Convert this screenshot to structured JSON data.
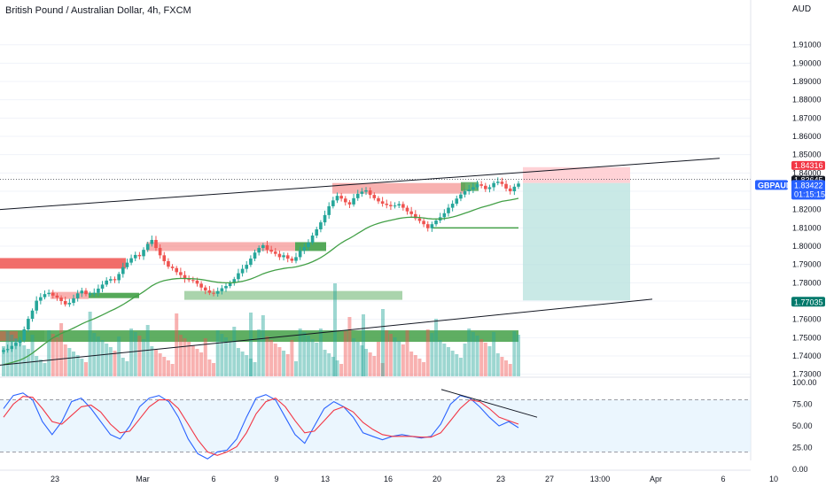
{
  "header": {
    "title": "British Pound / Australian Dollar, 4h, FXCM",
    "currency": "AUD"
  },
  "colors": {
    "up": "#26a69a",
    "down": "#ef5350",
    "ma": "#43a047",
    "trendline": "#131722",
    "stoch_k": "#2962ff",
    "stoch_d": "#f23645",
    "stoch_band": "#e3f2fd",
    "target_zone": "#b2dfdb",
    "stop_zone": "#ffcdd2",
    "ask_tag": "#f23645",
    "bid_tag": "#131722",
    "symbol_tag": "#2962ff",
    "target_tag": "#00796b"
  },
  "price_tags": {
    "ask": "1.84316",
    "bid": "1.83645",
    "symbol": "GBPAUD",
    "last": "1.83422",
    "countdown": "01:15:15",
    "target": "1.77035"
  },
  "chart_data": [
    {
      "type": "candlestick",
      "title": "British Pound / Australian Dollar, 4h, FXCM",
      "y_unit": "AUD",
      "ylim": [
        1.725,
        1.92
      ],
      "y_ticks": [
        "1.91000",
        "1.90000",
        "1.89000",
        "1.88000",
        "1.87000",
        "1.86000",
        "1.85000",
        "1.84000",
        "1.83000",
        "1.82000",
        "1.81000",
        "1.80000",
        "1.79000",
        "1.78000",
        "1.77000",
        "1.76000",
        "1.75000",
        "1.74000",
        "1.73000"
      ],
      "x_ticks": [
        "23",
        "Mar",
        "6",
        "9",
        "13",
        "16",
        "20",
        "23",
        "27",
        "13:00",
        "Apr",
        "6",
        "10"
      ],
      "grid": true,
      "close": [
        1.7432,
        1.7438,
        1.7455,
        1.7472,
        1.7486,
        1.7545,
        1.7603,
        1.7648,
        1.7702,
        1.7721,
        1.7738,
        1.7745,
        1.773,
        1.7719,
        1.77,
        1.7682,
        1.769,
        1.7715,
        1.7742,
        1.7757,
        1.7738,
        1.774,
        1.7745,
        1.7768,
        1.779,
        1.7812,
        1.782,
        1.7814,
        1.7848,
        1.7885,
        1.791,
        1.7934,
        1.7952,
        1.7945,
        1.798,
        1.8012,
        1.8034,
        1.799,
        1.795,
        1.7918,
        1.7888,
        1.788,
        1.7858,
        1.7842,
        1.782,
        1.7815,
        1.7812,
        1.7795,
        1.7774,
        1.7758,
        1.7745,
        1.774,
        1.7754,
        1.777,
        1.7782,
        1.7798,
        1.782,
        1.7852,
        1.7876,
        1.7898,
        1.7932,
        1.7965,
        1.799,
        1.8005,
        1.798,
        1.797,
        1.7958,
        1.794,
        1.795,
        1.7932,
        1.792,
        1.794,
        1.7975,
        1.7995,
        1.802,
        1.8058,
        1.8092,
        1.813,
        1.817,
        1.8218,
        1.825,
        1.8275,
        1.826,
        1.824,
        1.8228,
        1.8262,
        1.8286,
        1.8298,
        1.8305,
        1.828,
        1.8262,
        1.8245,
        1.8232,
        1.8225,
        1.8218,
        1.8222,
        1.823,
        1.821,
        1.819,
        1.8175,
        1.8152,
        1.8138,
        1.812,
        1.8098,
        1.812,
        1.814,
        1.8158,
        1.818,
        1.821,
        1.8232,
        1.826,
        1.8282,
        1.83,
        1.831,
        1.8322,
        1.8338,
        1.833,
        1.8312,
        1.8322,
        1.8345,
        1.8352,
        1.834,
        1.8315,
        1.83,
        1.8325,
        1.8342
      ],
      "ma": {
        "name": "",
        "start_value": 1.7348,
        "note": "smoothed moving average"
      },
      "trendlines": [
        {
          "from": [
            "left",
            1.82
          ],
          "to": [
            "13:00 after 27",
            1.848
          ]
        },
        {
          "from": [
            "left",
            1.735
          ],
          "to": [
            "27 plus",
            1.766
          ]
        }
      ],
      "levels": [
        {
          "kind": "resistance",
          "value": 1.792
        },
        {
          "kind": "resistance",
          "value": 1.802
        },
        {
          "kind": "support",
          "value": 1.801
        },
        {
          "kind": "support",
          "value": 1.773
        },
        {
          "kind": "support",
          "value": 1.75
        },
        {
          "kind": "support",
          "value": 1.811
        }
      ],
      "position": {
        "kind": "short",
        "entry": 1.83645,
        "stop": 1.84316,
        "target": 1.77035
      }
    },
    {
      "type": "bar",
      "title": "Volume",
      "note": "volume histogram overlaid on price pane"
    },
    {
      "type": "line",
      "title": "Stochastic",
      "ylim": [
        0,
        100
      ],
      "y_ticks": [
        "100.00",
        "75.00",
        "50.00",
        "25.00",
        "0.00"
      ],
      "bands": [
        20,
        80
      ],
      "series": [
        {
          "values": [
            70,
            85,
            88,
            80,
            55,
            40,
            55,
            78,
            82,
            70,
            55,
            40,
            35,
            50,
            72,
            82,
            85,
            78,
            60,
            35,
            18,
            12,
            20,
            22,
            35,
            60,
            82,
            86,
            80,
            60,
            40,
            30,
            50,
            70,
            78,
            72,
            60,
            42,
            38,
            34,
            38,
            40,
            38,
            36,
            38,
            52,
            75,
            85,
            82,
            72,
            60,
            50,
            55,
            48
          ]
        },
        {
          "values": [
            60,
            75,
            84,
            83,
            70,
            55,
            52,
            62,
            72,
            74,
            66,
            52,
            42,
            44,
            58,
            72,
            80,
            80,
            70,
            52,
            34,
            20,
            16,
            20,
            26,
            42,
            64,
            78,
            82,
            72,
            56,
            42,
            44,
            56,
            68,
            72,
            66,
            54,
            46,
            40,
            38,
            38,
            38,
            37,
            37,
            42,
            56,
            70,
            80,
            78,
            70,
            60,
            56,
            52
          ]
        }
      ],
      "trendline": {
        "from": 92,
        "to": 60
      }
    }
  ]
}
